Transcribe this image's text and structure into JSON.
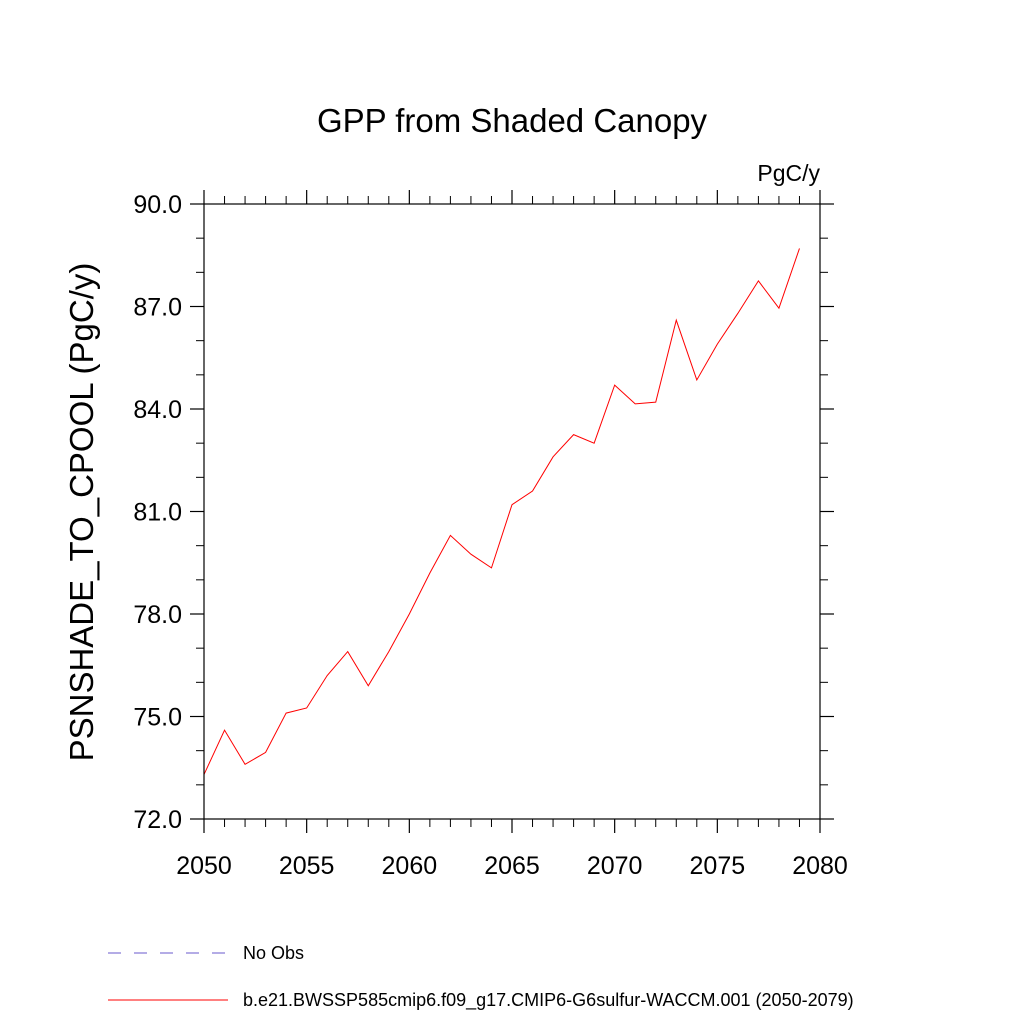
{
  "chart_data": {
    "type": "line",
    "title": "GPP from Shaded Canopy",
    "units": "PgC/y",
    "ylabel": "PSNSHADE_TO_CPOOL  (PgC/y)",
    "xlabel": "",
    "xlim": [
      2050,
      2080
    ],
    "ylim": [
      72.0,
      90.0
    ],
    "x_ticks": [
      2050,
      2055,
      2060,
      2065,
      2070,
      2075,
      2080
    ],
    "y_ticks": [
      72.0,
      75.0,
      78.0,
      81.0,
      84.0,
      87.0,
      90.0
    ],
    "x_tick_labels": [
      "2050",
      "2055",
      "2060",
      "2065",
      "2070",
      "2075",
      "2080"
    ],
    "y_tick_labels": [
      "72.0",
      "75.0",
      "78.0",
      "81.0",
      "84.0",
      "87.0",
      "90.0"
    ],
    "series": [
      {
        "name": "b.e21.BWSSP585cmip6.f09_g17.CMIP6-G6sulfur-WACCM.001 (2050-2079)",
        "color": "#ff0000",
        "x": [
          2050,
          2051,
          2052,
          2053,
          2054,
          2055,
          2056,
          2057,
          2058,
          2059,
          2060,
          2061,
          2062,
          2063,
          2064,
          2065,
          2066,
          2067,
          2068,
          2069,
          2070,
          2071,
          2072,
          2073,
          2074,
          2075,
          2076,
          2077,
          2078,
          2079
        ],
        "values": [
          73.3,
          74.6,
          73.6,
          73.95,
          75.1,
          75.25,
          76.2,
          76.9,
          75.9,
          76.9,
          78.0,
          79.2,
          80.3,
          79.75,
          79.35,
          81.2,
          81.6,
          82.6,
          83.25,
          83.0,
          84.7,
          84.15,
          84.2,
          86.6,
          84.85,
          85.9,
          86.8,
          87.75,
          86.95,
          88.7
        ]
      }
    ],
    "legend": {
      "position": "bottom",
      "entries": [
        {
          "label": "No Obs",
          "color": "#6a5acd",
          "style": "dashed"
        },
        {
          "label": "b.e21.BWSSP585cmip6.f09_g17.CMIP6-G6sulfur-WACCM.001 (2050-2079)",
          "color": "#ff0000",
          "style": "solid"
        }
      ]
    }
  }
}
